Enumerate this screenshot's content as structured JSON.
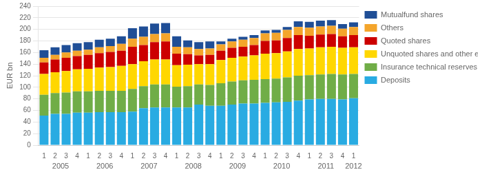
{
  "chart_data": {
    "type": "bar",
    "stacked": true,
    "ylabel": "EUR bn",
    "categories": [
      "1",
      "2",
      "3",
      "4",
      "1",
      "2",
      "3",
      "4",
      "1",
      "2",
      "3",
      "4",
      "1",
      "2",
      "3",
      "4",
      "1",
      "2",
      "3",
      "4",
      "1",
      "2",
      "3",
      "4",
      "1",
      "2",
      "3",
      "4",
      "1"
    ],
    "series": [
      {
        "name": "Deposits",
        "color": "#29ABE2",
        "values": [
          51,
          54,
          54,
          56,
          56,
          57,
          57,
          57,
          58,
          64,
          65,
          65,
          65,
          65,
          70,
          68,
          68,
          70,
          72,
          72,
          73,
          74,
          75,
          77,
          79,
          80,
          80,
          79,
          81
        ]
      },
      {
        "name": "Insurance technical reserves",
        "color": "#70AD47",
        "values": [
          36,
          36,
          37,
          37,
          37,
          37,
          37,
          37,
          39,
          38,
          40,
          40,
          36,
          37,
          35,
          36,
          39,
          40,
          40,
          41,
          41,
          41,
          42,
          43,
          42,
          42,
          43,
          43,
          42
        ]
      },
      {
        "name": "Unquoted shares and other equity",
        "color": "#FFD700",
        "values": [
          36,
          36,
          37,
          38,
          39,
          40,
          41,
          43,
          43,
          43,
          43,
          43,
          37,
          37,
          35,
          36,
          40,
          41,
          41,
          42,
          44,
          44,
          45,
          46,
          46,
          47,
          47,
          46,
          46
        ]
      },
      {
        "name": "Quoted shares",
        "color": "#CC0000",
        "values": [
          20,
          22,
          23,
          23,
          24,
          25,
          26,
          26,
          30,
          28,
          30,
          31,
          20,
          18,
          15,
          16,
          16,
          17,
          17,
          18,
          22,
          22,
          23,
          24,
          22,
          22,
          22,
          20,
          21
        ]
      },
      {
        "name": "Others",
        "color": "#F4A52B",
        "values": [
          8,
          8,
          9,
          9,
          9,
          10,
          10,
          12,
          14,
          14,
          14,
          14,
          12,
          12,
          11,
          11,
          11,
          11,
          12,
          12,
          13,
          13,
          14,
          14,
          14,
          14,
          14,
          13,
          14
        ]
      },
      {
        "name": "Mutualfund shares",
        "color": "#1F4E96",
        "values": [
          13,
          13,
          13,
          13,
          13,
          13,
          13,
          13,
          18,
          18,
          18,
          18,
          18,
          12,
          12,
          12,
          5,
          5,
          5,
          5,
          5,
          5,
          5,
          10,
          10,
          10,
          10,
          8,
          8
        ]
      }
    ],
    "ylim": [
      0,
      240
    ],
    "yticks": [
      0,
      20,
      40,
      60,
      80,
      100,
      120,
      140,
      160,
      180,
      200,
      220,
      240
    ],
    "grid": true,
    "legend": "right",
    "annotations": [
      {
        "text": "2005",
        "x": 1.5
      },
      {
        "text": "2006",
        "x": 5.5
      },
      {
        "text": "2007",
        "x": 9.5
      },
      {
        "text": "2008",
        "x": 13.5
      },
      {
        "text": "2009",
        "x": 17.5
      },
      {
        "text": "2010",
        "x": 21.5
      },
      {
        "text": "2011",
        "x": 25.5
      },
      {
        "text": "2012",
        "x": 28.0
      }
    ]
  }
}
